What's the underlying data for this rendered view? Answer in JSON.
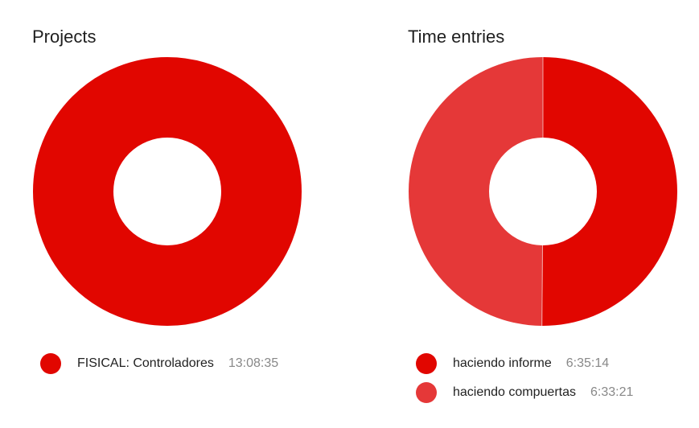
{
  "colors": {
    "primary": "#e10600",
    "secondary": "#e53838"
  },
  "chart_data": [
    {
      "type": "pie",
      "title": "Projects",
      "donut": true,
      "legend": "bottom",
      "slices": [
        {
          "label": "FISICAL: Controladores",
          "duration": "13:08:35",
          "seconds": 47315,
          "color": "#e10600"
        }
      ]
    },
    {
      "type": "pie",
      "title": "Time entries",
      "donut": true,
      "legend": "bottom",
      "slices": [
        {
          "label": "haciendo informe",
          "duration": "6:35:14",
          "seconds": 23714,
          "color": "#e10600"
        },
        {
          "label": "haciendo compuertas",
          "duration": "6:33:21",
          "seconds": 23601,
          "color": "#e53838"
        }
      ]
    }
  ]
}
